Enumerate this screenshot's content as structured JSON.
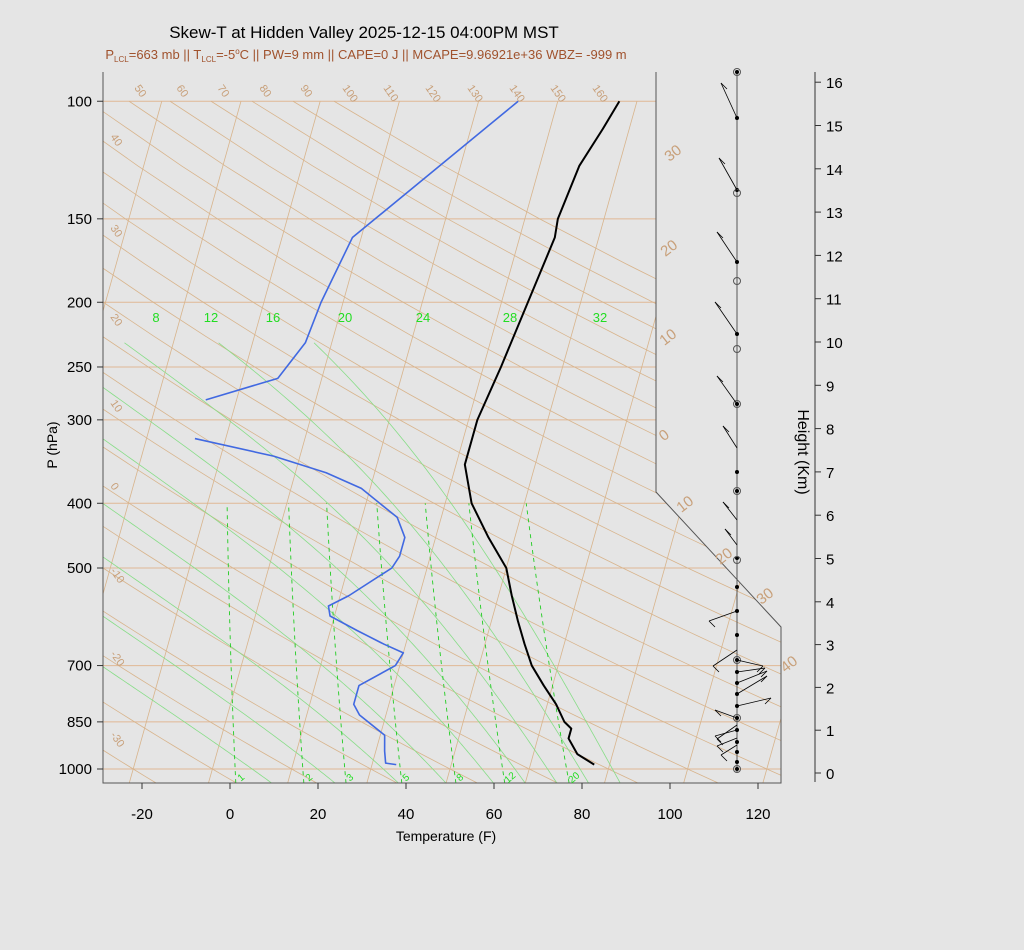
{
  "title": "Skew-T at Hidden Valley 2025-12-15 04:00PM MST",
  "subtitle": {
    "plcl_sub": "LCL",
    "plcl_value": "=663 mb || T",
    "tlcl_sub": "LCL",
    "tlcl_value": "=-5",
    "rest": "C || PW=9 mm || CAPE=0 J || MCAPE=9.96921e+36 WBZ= -999 m",
    "degree": "o"
  },
  "chart_data": {
    "type": "line",
    "xlabel": "Temperature (F)",
    "ylabel": "P (hPa)",
    "y2label": "Height (Km)",
    "x_ticks": [
      -20,
      0,
      20,
      40,
      60,
      80,
      100,
      120
    ],
    "p_ticks": [
      100,
      150,
      200,
      250,
      300,
      400,
      500,
      700,
      850,
      1000
    ],
    "height_ticks": [
      0,
      1,
      2,
      3,
      4,
      5,
      6,
      7,
      8,
      9,
      10,
      11,
      12,
      13,
      14,
      15,
      16
    ],
    "xlim": [
      -29,
      125
    ],
    "plim": [
      100,
      1050
    ],
    "series": [
      {
        "role": "temperature",
        "color": "#000000",
        "points": [
          {
            "p": 985,
            "t": 82.5
          },
          {
            "p": 950,
            "t": 78
          },
          {
            "p": 900,
            "t": 75
          },
          {
            "p": 870,
            "t": 75
          },
          {
            "p": 850,
            "t": 73
          },
          {
            "p": 800,
            "t": 70
          },
          {
            "p": 750,
            "t": 66
          },
          {
            "p": 700,
            "t": 62
          },
          {
            "p": 650,
            "t": 59
          },
          {
            "p": 600,
            "t": 56
          },
          {
            "p": 550,
            "t": 53
          },
          {
            "p": 500,
            "t": 50
          },
          {
            "p": 450,
            "t": 44
          },
          {
            "p": 400,
            "t": 38
          },
          {
            "p": 350,
            "t": 34
          },
          {
            "p": 300,
            "t": 34
          },
          {
            "p": 250,
            "t": 36
          },
          {
            "p": 200,
            "t": 38
          },
          {
            "p": 160,
            "t": 40
          },
          {
            "p": 150,
            "t": 39.5
          },
          {
            "p": 125,
            "t": 41
          },
          {
            "p": 110,
            "t": 44
          },
          {
            "p": 100,
            "t": 46
          }
        ]
      },
      {
        "role": "dewpoint",
        "color": "#4169e1",
        "points": [
          {
            "p": 985,
            "t": 37.5
          },
          {
            "p": 980,
            "t": 35
          },
          {
            "p": 940,
            "t": 34
          },
          {
            "p": 890,
            "t": 33
          },
          {
            "p": 830,
            "t": 26
          },
          {
            "p": 800,
            "t": 24
          },
          {
            "p": 750,
            "t": 24
          },
          {
            "p": 700,
            "t": 31
          },
          {
            "p": 670,
            "t": 32
          },
          {
            "p": 650,
            "t": 27
          },
          {
            "p": 620,
            "t": 20
          },
          {
            "p": 590,
            "t": 13
          },
          {
            "p": 570,
            "t": 12
          },
          {
            "p": 550,
            "t": 16
          },
          {
            "p": 500,
            "t": 24
          },
          {
            "p": 480,
            "t": 25
          },
          {
            "p": 450,
            "t": 25
          },
          {
            "p": 420,
            "t": 22
          },
          {
            "p": 380,
            "t": 12
          },
          {
            "p": 360,
            "t": 3
          },
          {
            "p": 340,
            "t": -10
          },
          {
            "p": 320,
            "t": -29
          }
        ]
      },
      {
        "role": "dewpoint_upper",
        "color": "#4169e1",
        "points": [
          {
            "p": 280,
            "t": -29
          },
          {
            "p": 260,
            "t": -14
          },
          {
            "p": 230,
            "t": -10
          },
          {
            "p": 200,
            "t": -9
          },
          {
            "p": 160,
            "t": -6
          },
          {
            "p": 100,
            "t": 23
          }
        ]
      }
    ],
    "isotherm_labels_c": [
      "-30",
      "-20",
      "-10",
      "0",
      "10",
      "20",
      "30",
      "40"
    ],
    "theta_labels_k": [
      "50",
      "60",
      "70",
      "80",
      "90",
      "100",
      "110",
      "120",
      "130",
      "140",
      "150",
      "160"
    ],
    "theta_left_labels": [
      "40",
      "30",
      "20",
      "10",
      "0",
      "-10",
      "-20",
      "-30"
    ],
    "mixing_ratio_top": [
      "8",
      "12",
      "16",
      "20",
      "24",
      "28",
      "32"
    ],
    "mixing_ratio_bottom": [
      "1",
      "2",
      "3",
      "5",
      "8",
      "12",
      "20"
    ],
    "colors": {
      "temperature": "#000000",
      "dewpoint": "#4169e1",
      "isotherm": "#d2b48c",
      "mixing": "#22dd22",
      "background": "#e5e5e5"
    }
  }
}
